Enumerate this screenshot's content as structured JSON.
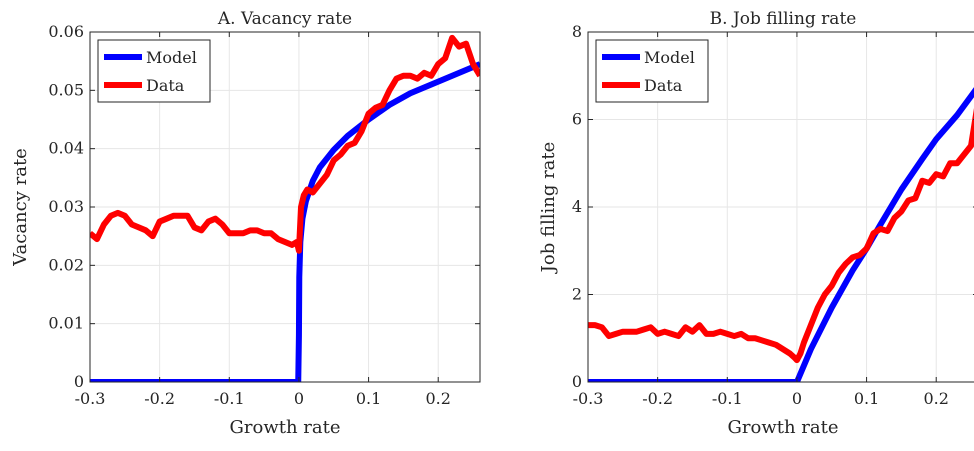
{
  "chart_data": [
    {
      "type": "line",
      "title": "A. Vacancy rate",
      "xlabel": "Growth rate",
      "ylabel": "Vacancy rate",
      "xlim": [
        -0.3,
        0.26
      ],
      "ylim": [
        0,
        0.06
      ],
      "xticks": [
        -0.3,
        -0.2,
        -0.1,
        0,
        0.1,
        0.2
      ],
      "xtick_labels": [
        "-0.3",
        "-0.2",
        "-0.1",
        "0",
        "0.1",
        "0.2"
      ],
      "yticks": [
        0,
        0.01,
        0.02,
        0.03,
        0.04,
        0.05,
        0.06
      ],
      "ytick_labels": [
        "0",
        "0.01",
        "0.02",
        "0.03",
        "0.04",
        "0.05",
        "0.06"
      ],
      "grid": true,
      "legend": "top-left",
      "series": [
        {
          "name": "Model",
          "color": "#0000ff",
          "x": [
            -0.3,
            -0.001,
            0,
            0.0005,
            0.002,
            0.005,
            0.01,
            0.02,
            0.03,
            0.05,
            0.07,
            0.1,
            0.13,
            0.16,
            0.2,
            0.23,
            0.26
          ],
          "y": [
            0,
            0,
            0.008,
            0.018,
            0.024,
            0.028,
            0.031,
            0.0345,
            0.0368,
            0.0398,
            0.0422,
            0.045,
            0.0475,
            0.0495,
            0.0515,
            0.053,
            0.0545
          ]
        },
        {
          "name": "Data",
          "color": "#ff0000",
          "x": [
            -0.3,
            -0.29,
            -0.28,
            -0.27,
            -0.26,
            -0.25,
            -0.24,
            -0.23,
            -0.22,
            -0.21,
            -0.2,
            -0.19,
            -0.18,
            -0.17,
            -0.16,
            -0.15,
            -0.14,
            -0.13,
            -0.12,
            -0.11,
            -0.1,
            -0.09,
            -0.08,
            -0.07,
            -0.06,
            -0.05,
            -0.04,
            -0.03,
            -0.02,
            -0.01,
            -0.003,
            0,
            0.003,
            0.007,
            0.012,
            0.02,
            0.03,
            0.04,
            0.05,
            0.06,
            0.07,
            0.08,
            0.09,
            0.1,
            0.11,
            0.12,
            0.13,
            0.14,
            0.15,
            0.16,
            0.17,
            0.18,
            0.19,
            0.2,
            0.21,
            0.22,
            0.23,
            0.24,
            0.25,
            0.26
          ],
          "y": [
            0.0255,
            0.0245,
            0.027,
            0.0285,
            0.029,
            0.0285,
            0.027,
            0.0265,
            0.026,
            0.025,
            0.0275,
            0.028,
            0.0285,
            0.0285,
            0.0285,
            0.0265,
            0.026,
            0.0275,
            0.028,
            0.027,
            0.0255,
            0.0255,
            0.0255,
            0.026,
            0.026,
            0.0255,
            0.0255,
            0.0245,
            0.024,
            0.0235,
            0.024,
            0.0225,
            0.03,
            0.032,
            0.033,
            0.0325,
            0.034,
            0.0355,
            0.038,
            0.039,
            0.0405,
            0.041,
            0.043,
            0.046,
            0.047,
            0.0475,
            0.05,
            0.052,
            0.0525,
            0.0525,
            0.052,
            0.053,
            0.0525,
            0.0545,
            0.0555,
            0.059,
            0.0575,
            0.058,
            0.0545,
            0.0525
          ]
        }
      ]
    },
    {
      "type": "line",
      "title": "B. Job filling rate",
      "xlabel": "Growth rate",
      "ylabel": "Job filling rate",
      "xlim": [
        -0.3,
        0.26
      ],
      "ylim": [
        0,
        8
      ],
      "xticks": [
        -0.3,
        -0.2,
        -0.1,
        0,
        0.1,
        0.2
      ],
      "xtick_labels": [
        "-0.3",
        "-0.2",
        "-0.1",
        "0",
        "0.1",
        "0.2"
      ],
      "yticks": [
        0,
        2,
        4,
        6,
        8
      ],
      "ytick_labels": [
        "0",
        "2",
        "4",
        "6",
        "8"
      ],
      "grid": true,
      "legend": "top-left",
      "series": [
        {
          "name": "Model",
          "color": "#0000ff",
          "x": [
            -0.3,
            -0.001,
            0,
            0.02,
            0.05,
            0.08,
            0.1,
            0.12,
            0.15,
            0.18,
            0.2,
            0.23,
            0.26
          ],
          "y": [
            0,
            0,
            0,
            0.75,
            1.7,
            2.55,
            3.05,
            3.6,
            4.4,
            5.1,
            5.55,
            6.1,
            6.75
          ]
        },
        {
          "name": "Data",
          "color": "#ff0000",
          "x": [
            -0.3,
            -0.29,
            -0.28,
            -0.27,
            -0.26,
            -0.25,
            -0.24,
            -0.23,
            -0.22,
            -0.21,
            -0.2,
            -0.19,
            -0.18,
            -0.17,
            -0.16,
            -0.15,
            -0.14,
            -0.13,
            -0.12,
            -0.11,
            -0.1,
            -0.09,
            -0.08,
            -0.07,
            -0.06,
            -0.05,
            -0.04,
            -0.03,
            -0.02,
            -0.01,
            -0.003,
            0,
            0.005,
            0.01,
            0.02,
            0.03,
            0.04,
            0.05,
            0.06,
            0.07,
            0.08,
            0.09,
            0.1,
            0.11,
            0.12,
            0.13,
            0.14,
            0.15,
            0.16,
            0.17,
            0.18,
            0.19,
            0.2,
            0.21,
            0.22,
            0.23,
            0.24,
            0.25,
            0.26
          ],
          "y": [
            1.3,
            1.3,
            1.25,
            1.05,
            1.1,
            1.15,
            1.15,
            1.15,
            1.2,
            1.25,
            1.1,
            1.15,
            1.1,
            1.05,
            1.25,
            1.15,
            1.3,
            1.1,
            1.1,
            1.15,
            1.1,
            1.05,
            1.1,
            1.0,
            1.0,
            0.95,
            0.9,
            0.85,
            0.75,
            0.65,
            0.55,
            0.5,
            0.65,
            0.9,
            1.3,
            1.7,
            2.0,
            2.2,
            2.5,
            2.7,
            2.85,
            2.9,
            3.05,
            3.4,
            3.5,
            3.45,
            3.75,
            3.9,
            4.15,
            4.2,
            4.6,
            4.55,
            4.75,
            4.7,
            5.0,
            5.0,
            5.2,
            5.4,
            6.4
          ]
        }
      ]
    }
  ]
}
